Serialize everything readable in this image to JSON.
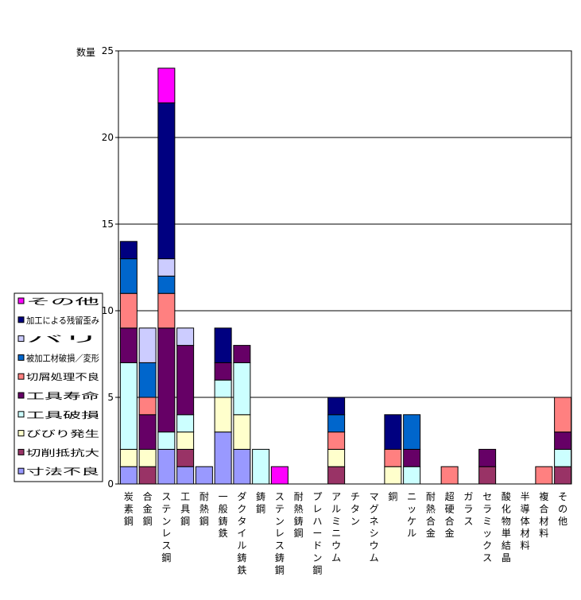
{
  "chart_data": {
    "type": "bar",
    "stacked": true,
    "ylabel": "数量",
    "ylim": [
      0,
      25
    ],
    "yticks": [
      0,
      5,
      10,
      15,
      20,
      25
    ],
    "grid": true,
    "legend_position": "left",
    "categories": [
      "炭素鋼",
      "合金鋼",
      "ステンレス鋼",
      "工具鋼",
      "耐熱鋼",
      "一般鋳鉄",
      "ダクタイル鋳鉄",
      "鋳鋼",
      "ステンレス鋳鋼",
      "耐熱鋳鋼",
      "プレハードン鋼",
      "アルミニウム",
      "チタン",
      "マグネシウム",
      "銅",
      "ニッケル",
      "耐熱合金",
      "超硬合金",
      "ガラス",
      "セラミックス",
      "酸化物単結晶",
      "半導体材料",
      "複合材料",
      "その他"
    ],
    "series": [
      {
        "name": "寸法不良",
        "color": "#9999ff",
        "values": [
          1,
          0,
          2,
          1,
          1,
          3,
          2,
          0,
          0,
          0,
          0,
          0,
          0,
          0,
          0,
          0,
          0,
          0,
          0,
          0,
          0,
          0,
          0,
          0
        ]
      },
      {
        "name": "切削抵抗大",
        "color": "#993366",
        "values": [
          0,
          1,
          0,
          1,
          0,
          0,
          0,
          0,
          0,
          0,
          0,
          1,
          0,
          0,
          0,
          0,
          0,
          0,
          0,
          1,
          0,
          0,
          0,
          1
        ]
      },
      {
        "name": "びびり発生",
        "color": "#ffffcc",
        "values": [
          1,
          1,
          0,
          1,
          0,
          2,
          2,
          0,
          0,
          0,
          0,
          1,
          0,
          0,
          1,
          0,
          0,
          0,
          0,
          0,
          0,
          0,
          0,
          0
        ]
      },
      {
        "name": "工具破損",
        "color": "#ccffff",
        "values": [
          5,
          0,
          1,
          1,
          0,
          1,
          3,
          2,
          0,
          0,
          0,
          0,
          0,
          0,
          0,
          1,
          0,
          0,
          0,
          0,
          0,
          0,
          0,
          1
        ]
      },
      {
        "name": "工具寿命",
        "color": "#660066",
        "values": [
          2,
          2,
          6,
          4,
          0,
          1,
          1,
          0,
          0,
          0,
          0,
          0,
          0,
          0,
          0,
          1,
          0,
          0,
          0,
          1,
          0,
          0,
          0,
          1
        ]
      },
      {
        "name": "切屑処理不良",
        "color": "#ff8080",
        "values": [
          2,
          1,
          2,
          0,
          0,
          0,
          0,
          0,
          0,
          0,
          0,
          1,
          0,
          0,
          1,
          0,
          0,
          1,
          0,
          0,
          0,
          0,
          1,
          2
        ]
      },
      {
        "name": "被加工材破損／変形",
        "color": "#0066cc",
        "values": [
          2,
          2,
          1,
          0,
          0,
          0,
          0,
          0,
          0,
          0,
          0,
          1,
          0,
          0,
          0,
          2,
          0,
          0,
          0,
          0,
          0,
          0,
          0,
          0
        ]
      },
      {
        "name": "バリ",
        "color": "#ccccff",
        "values": [
          0,
          2,
          1,
          1,
          0,
          0,
          0,
          0,
          0,
          0,
          0,
          0,
          0,
          0,
          0,
          0,
          0,
          0,
          0,
          0,
          0,
          0,
          0,
          0
        ]
      },
      {
        "name": "加工による残留歪み",
        "color": "#000080",
        "values": [
          1,
          0,
          9,
          0,
          0,
          2,
          0,
          0,
          0,
          0,
          0,
          1,
          0,
          0,
          2,
          0,
          0,
          0,
          0,
          0,
          0,
          0,
          0,
          0
        ]
      },
      {
        "name": "その他",
        "color": "#ff00ff",
        "values": [
          0,
          0,
          2,
          0,
          0,
          0,
          0,
          0,
          1,
          0,
          0,
          0,
          0,
          0,
          0,
          0,
          0,
          0,
          0,
          0,
          0,
          0,
          0,
          0
        ]
      }
    ],
    "legend_order": [
      "その他",
      "加工による残留歪み",
      "バリ",
      "被加工材破損／変形",
      "切屑処理不良",
      "工具寿命",
      "工具破損",
      "びびり発生",
      "切削抵抗大",
      "寸法不良"
    ]
  }
}
